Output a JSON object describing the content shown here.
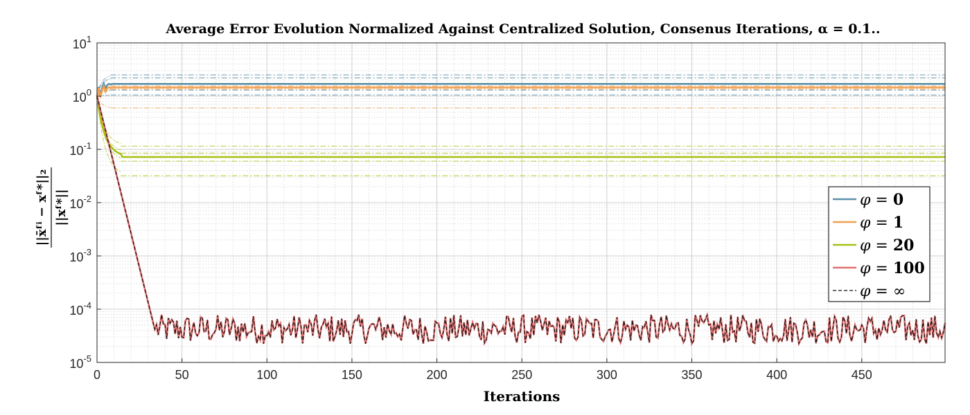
{
  "chart_data": {
    "type": "line",
    "title": "Average Error Evolution Normalized Against Centralized Solution, Consenus Iterations, α = 0.1..",
    "xlabel": "Iterations",
    "ylabel_numerator": "||x̄ᶠⁱ − xᶠ*||₂",
    "ylabel_denominator": "||xᶠ*||",
    "xlim": [
      0,
      499
    ],
    "ylim": [
      1e-05,
      10
    ],
    "yscale": "log",
    "grid": true,
    "minor_grid": true,
    "legend_position": "right",
    "xticks": [
      0,
      50,
      100,
      150,
      200,
      250,
      300,
      350,
      400,
      450
    ],
    "xtick_labels": [
      "0",
      "50",
      "100",
      "150",
      "200",
      "250",
      "300",
      "350",
      "400",
      "450"
    ],
    "ytick_labels": [
      {
        "base": "10",
        "exp": "1"
      },
      {
        "base": "10",
        "exp": "0"
      },
      {
        "base": "10",
        "exp": "-1"
      },
      {
        "base": "10",
        "exp": "-2"
      },
      {
        "base": "10",
        "exp": "-3"
      },
      {
        "base": "10",
        "exp": "-4"
      },
      {
        "base": "10",
        "exp": "-5"
      }
    ],
    "yticks": [
      10,
      1,
      0.1,
      0.01,
      0.001,
      0.0001,
      1e-05
    ],
    "series": [
      {
        "name": "φ = 0",
        "legend_symbol": "φ",
        "legend_value": "0",
        "color": "#5b8fa8",
        "style": "solid",
        "start": 1.0,
        "steady": 1.7,
        "settle_iter": 8,
        "bands": [
          1.05,
          1.3,
          2.2,
          2.5
        ]
      },
      {
        "name": "φ = 1",
        "legend_symbol": "φ",
        "legend_value": "1",
        "color": "#f0a050",
        "style": "solid",
        "start": 1.0,
        "steady": 1.45,
        "settle_iter": 8,
        "bands": [
          0.6,
          1.35,
          1.55
        ]
      },
      {
        "name": "φ = 20",
        "legend_symbol": "φ",
        "legend_value": "20",
        "color": "#a8c010",
        "style": "solid",
        "start": 1.0,
        "steady": 0.072,
        "settle_iter": 14,
        "bands": [
          0.032,
          0.06,
          0.085,
          0.115
        ]
      },
      {
        "name": "φ = 100",
        "legend_symbol": "φ",
        "legend_value": "100",
        "color": "#e07070",
        "style": "solid",
        "start": 1.0,
        "floor_mean": 4.2e-05,
        "floor_range": [
          1.6e-05,
          8e-05
        ],
        "converge_iter": 34
      },
      {
        "name": "φ = ∞",
        "legend_symbol": "φ",
        "legend_value": "∞",
        "color": "#111111",
        "style": "dashed",
        "start": 1.0,
        "floor_mean": 4.2e-05,
        "floor_range": [
          1.6e-05,
          8e-05
        ],
        "converge_iter": 34
      }
    ]
  }
}
